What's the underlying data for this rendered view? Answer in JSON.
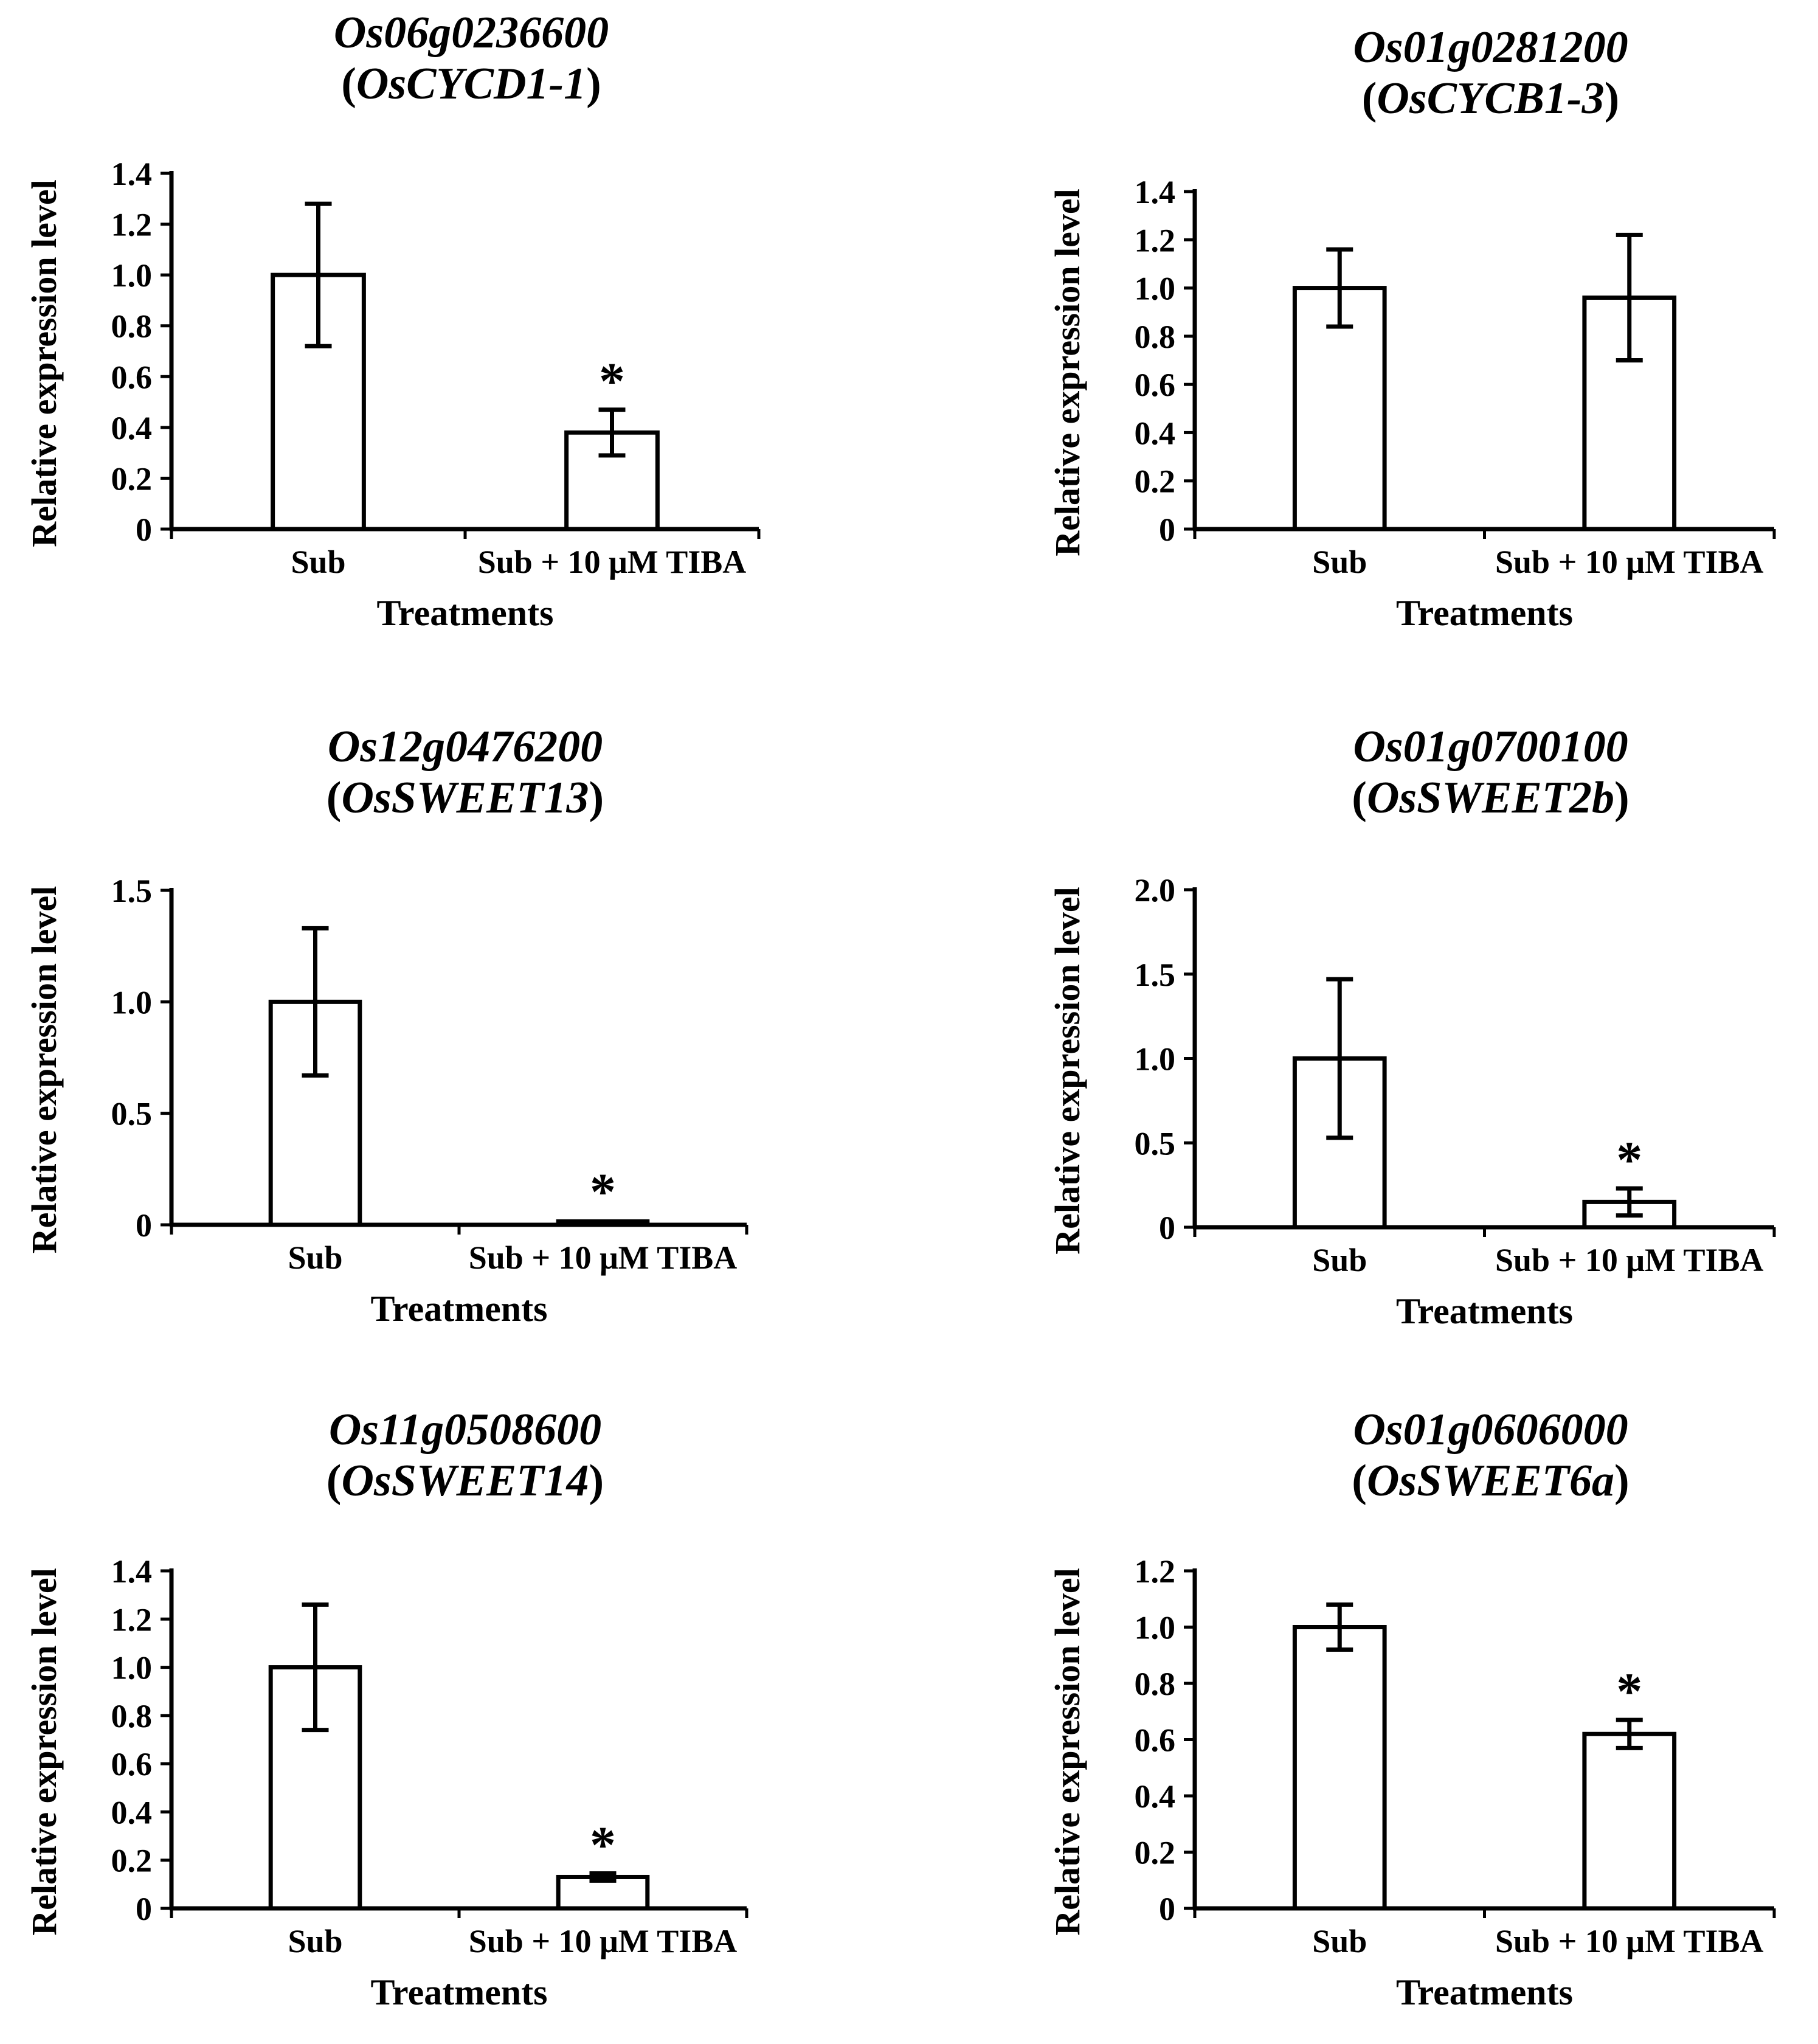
{
  "chart_data": [
    {
      "type": "bar",
      "title_gene": "Os06g0236600",
      "title_name": "OsCYCD1-1",
      "categories": [
        "Sub",
        "Sub + 10 μM TIBA"
      ],
      "values": [
        1.0,
        0.38
      ],
      "errors": [
        0.28,
        0.09
      ],
      "significance": [
        "",
        "*"
      ],
      "ylim": [
        0,
        1.4
      ],
      "yticks": [
        0,
        0.2,
        0.4,
        0.6,
        0.8,
        1.0,
        1.2,
        1.4
      ],
      "ytick_labels": [
        "0",
        "0.2",
        "0.4",
        "0.6",
        "0.8",
        "1.0",
        "1.2",
        "1.4"
      ],
      "xlabel": "Treatments",
      "ylabel": "Relative expression level"
    },
    {
      "type": "bar",
      "title_gene": "Os01g0281200",
      "title_name": "OsCYCB1-3",
      "categories": [
        "Sub",
        "Sub + 10 μM TIBA"
      ],
      "values": [
        1.0,
        0.96
      ],
      "errors": [
        0.16,
        0.26
      ],
      "significance": [
        "",
        ""
      ],
      "ylim": [
        0,
        1.4
      ],
      "yticks": [
        0,
        0.2,
        0.4,
        0.6,
        0.8,
        1.0,
        1.2,
        1.4
      ],
      "ytick_labels": [
        "0",
        "0.2",
        "0.4",
        "0.6",
        "0.8",
        "1.0",
        "1.2",
        "1.4"
      ],
      "xlabel": "Treatments",
      "ylabel": "Relative expression level"
    },
    {
      "type": "bar",
      "title_gene": "Os12g0476200",
      "title_name": "OsSWEET13",
      "categories": [
        "Sub",
        "Sub + 10 μM TIBA"
      ],
      "values": [
        1.0,
        0.015
      ],
      "errors": [
        0.33,
        0.005
      ],
      "significance": [
        "",
        "*"
      ],
      "ylim": [
        0,
        1.5
      ],
      "yticks": [
        0,
        0.5,
        1.0,
        1.5
      ],
      "ytick_labels": [
        "0",
        "0.5",
        "1.0",
        "1.5"
      ],
      "xlabel": "Treatments",
      "ylabel": "Relative expression level"
    },
    {
      "type": "bar",
      "title_gene": "Os01g0700100",
      "title_name": "OsSWEET2b",
      "categories": [
        "Sub",
        "Sub + 10 μM TIBA"
      ],
      "values": [
        1.0,
        0.15
      ],
      "errors": [
        0.47,
        0.08
      ],
      "significance": [
        "",
        "*"
      ],
      "ylim": [
        0,
        2.0
      ],
      "yticks": [
        0,
        0.5,
        1.0,
        1.5,
        2.0
      ],
      "ytick_labels": [
        "0",
        "0.5",
        "1.0",
        "1.5",
        "2.0"
      ],
      "xlabel": "Treatments",
      "ylabel": "Relative expression level"
    },
    {
      "type": "bar",
      "title_gene": "Os11g0508600",
      "title_name": "OsSWEET14",
      "categories": [
        "Sub",
        "Sub + 10 μM TIBA"
      ],
      "values": [
        1.0,
        0.13
      ],
      "errors": [
        0.26,
        0.015
      ],
      "significance": [
        "",
        "*"
      ],
      "ylim": [
        0,
        1.4
      ],
      "yticks": [
        0,
        0.2,
        0.4,
        0.6,
        0.8,
        1.0,
        1.2,
        1.4
      ],
      "ytick_labels": [
        "0",
        "0.2",
        "0.4",
        "0.6",
        "0.8",
        "1.0",
        "1.2",
        "1.4"
      ],
      "xlabel": "Treatments",
      "ylabel": "Relative expression level"
    },
    {
      "type": "bar",
      "title_gene": "Os01g0606000",
      "title_name": "OsSWEET6a",
      "categories": [
        "Sub",
        "Sub + 10 μM TIBA"
      ],
      "values": [
        1.0,
        0.62
      ],
      "errors": [
        0.08,
        0.05
      ],
      "significance": [
        "",
        "*"
      ],
      "ylim": [
        0,
        1.2
      ],
      "yticks": [
        0,
        0.2,
        0.4,
        0.6,
        0.8,
        1.0,
        1.2
      ],
      "ytick_labels": [
        "0",
        "0.2",
        "0.4",
        "0.6",
        "0.8",
        "1.0",
        "1.2"
      ],
      "xlabel": "Treatments",
      "ylabel": "Relative expression level"
    }
  ],
  "colors": {
    "bar_fill": "#ffffff",
    "stroke": "#000000",
    "text": "#000000"
  }
}
